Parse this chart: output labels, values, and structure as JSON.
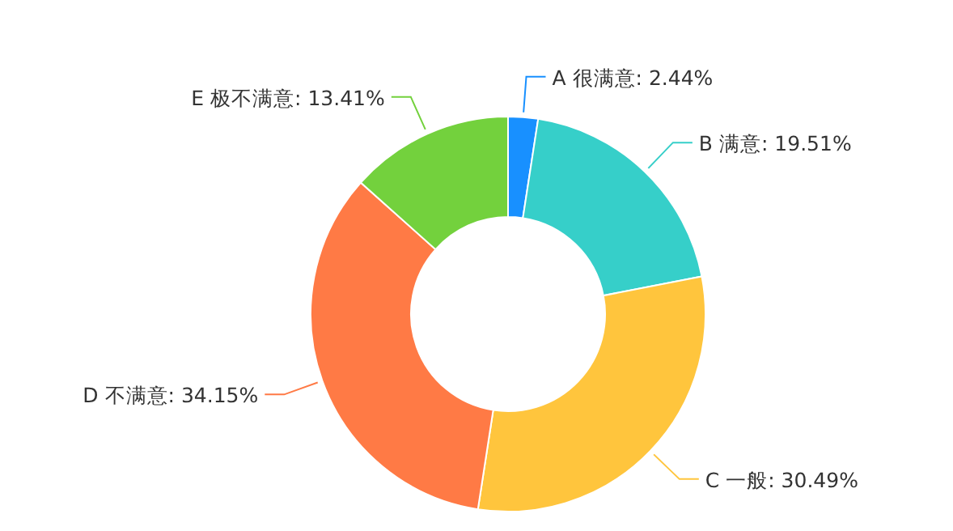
{
  "chart_data": {
    "type": "donut",
    "categories": [
      "A 很满意",
      "B 满意",
      "C 一般",
      "D 不满意",
      "E 极不满意"
    ],
    "values": [
      2.44,
      19.51,
      30.49,
      34.15,
      13.41
    ],
    "value_labels": [
      ": 2.44%",
      ": 19.51%",
      ": 30.49%",
      ": 34.15%",
      ": 13.41%"
    ],
    "colors": [
      "#1890ff",
      "#36cfc9",
      "#ffc53d",
      "#ff7a45",
      "#73d13d"
    ]
  }
}
